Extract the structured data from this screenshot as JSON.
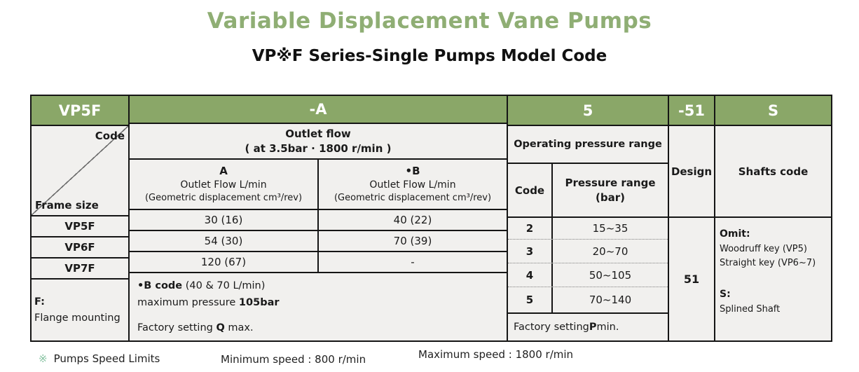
{
  "title": "Variable Displacement Vane Pumps",
  "subtitle": "VP※F Series-Single Pumps Model Code",
  "colors": {
    "header_green": "#8aa768",
    "title_green": "#8fae74",
    "table_bg": "#f1f0ee",
    "footnote_marker_green": "#85c2a0"
  },
  "model_code": {
    "frame": "VP5F",
    "outlet_flow": "-A",
    "pressure": "5",
    "design": "-51",
    "shaft": "S"
  },
  "frame_section": {
    "corner_top": "Code",
    "corner_bottom": "Frame size",
    "rows": [
      "VP5F",
      "VP6F",
      "VP7F"
    ],
    "mounting_code": "F:",
    "mounting_label": "Flange mounting"
  },
  "outlet_section": {
    "header_line1": "Outlet flow",
    "header_line2": "( at 3.5bar · 1800 r/min )",
    "col_a_code": "A",
    "col_a_line1": "Outlet Flow L/min",
    "col_a_line2": "(Geometric displacement cm³/rev)",
    "col_b_code": "•B",
    "col_b_line1": "Outlet Flow L/min",
    "col_b_line2": "(Geometric displacement cm³/rev)",
    "rows": [
      {
        "a": "30 (16)",
        "b": "40 (22)"
      },
      {
        "a": "54 (30)",
        "b": "70 (39)"
      },
      {
        "a": "120 (67)",
        "b": "-"
      }
    ],
    "note_line1_bold": "•B code",
    "note_line1_rest": " (40 & 70 L/min)",
    "note_line2_pre": "maximum pressure ",
    "note_line2_bold": "105bar",
    "note_line3_pre": "Factory setting ",
    "note_line3_bold": "Q",
    "note_line3_post": " max."
  },
  "pressure_section": {
    "header": "Operating pressure range",
    "code_header": "Code",
    "range_header_line1": "Pressure range",
    "range_header_line2": "(bar)",
    "rows": [
      {
        "code": "2",
        "range": "15~35"
      },
      {
        "code": "3",
        "range": "20~70"
      },
      {
        "code": "4",
        "range": "50~105"
      },
      {
        "code": "5",
        "range": "70~140"
      }
    ],
    "factory_pre": "Factory setting ",
    "factory_bold": "P",
    "factory_post": " min."
  },
  "design_section": {
    "header": "Design",
    "value": "51"
  },
  "shaft_section": {
    "header": "Shafts code",
    "omit_label": "Omit:",
    "omit_line1": "Woodruff key (VP5)",
    "omit_line2": "Straight key (VP6~7)",
    "s_label": "S:",
    "s_line": "Splined Shaft"
  },
  "footer": {
    "marker": "※",
    "label": "Pumps Speed Limits",
    "min_speed": "Minimum speed : 800 r/min",
    "max_speed": "Maximum speed : 1800 r/min"
  }
}
